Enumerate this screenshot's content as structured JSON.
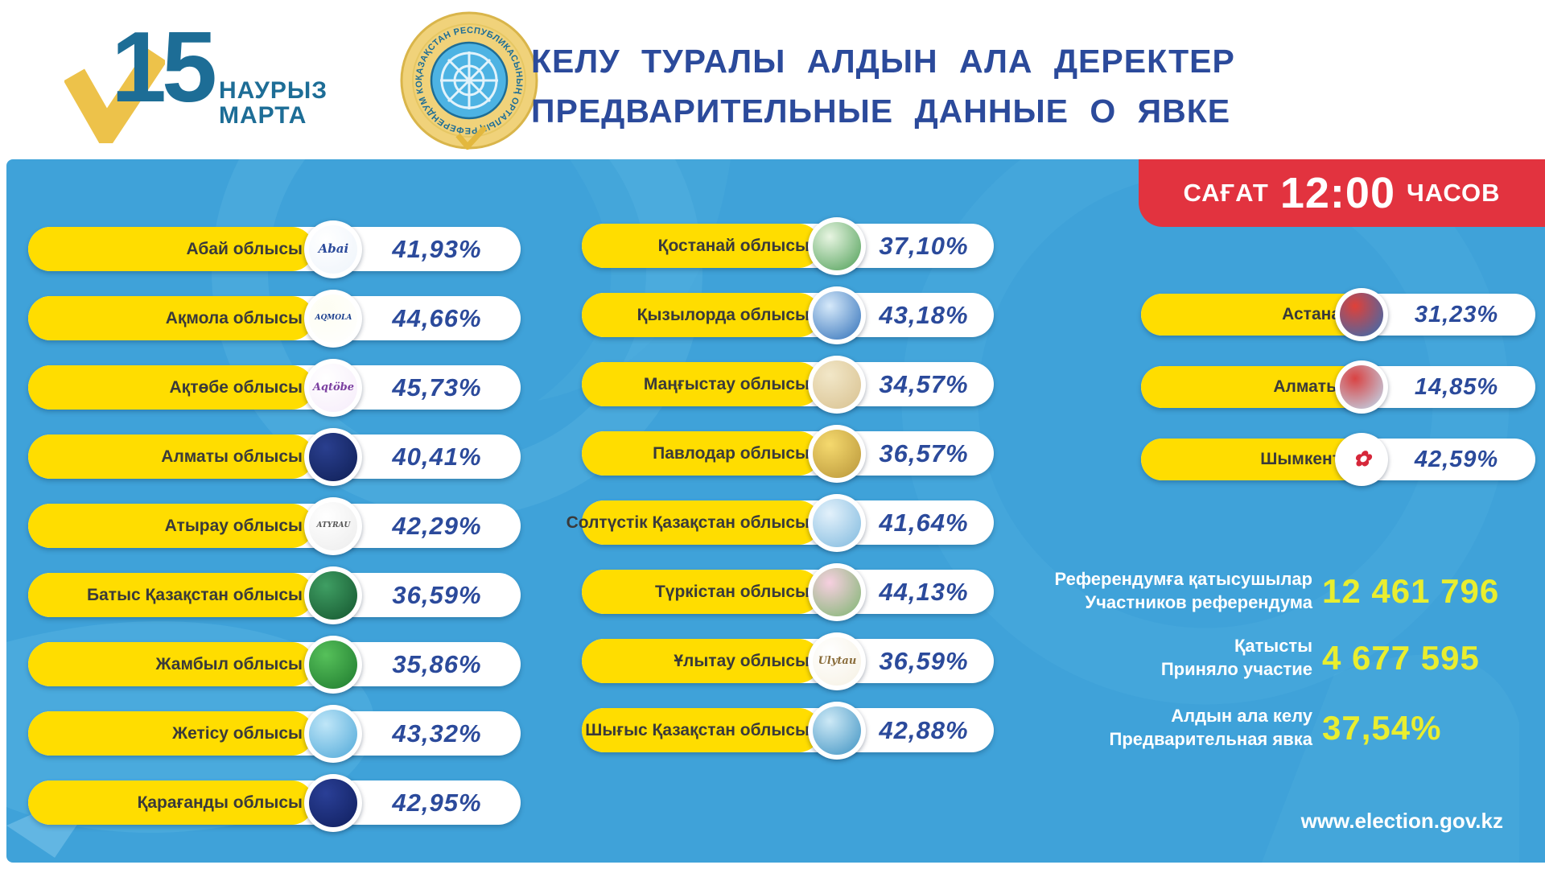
{
  "header": {
    "logo": {
      "day": "15",
      "month_kk": "НАУРЫЗ",
      "month_ru": "МАРТА"
    },
    "seal_text": "ҚАЗАҚСТАН РЕСПУБЛИКАСЫНЫҢ ОРТАЛЫҚ РЕФЕРЕНДУМ КОМИССИЯСЫ",
    "title_line1": "КЕЛУ ТУРАЛЫ АЛДЫН АЛА ДЕРЕКТЕР",
    "title_line2": "ПРЕДВАРИТЕЛЬНЫЕ ДАННЫЕ О ЯВКЕ"
  },
  "time_badge": {
    "prefix": "САҒАТ",
    "time": "12:00",
    "suffix": "ЧАСОВ"
  },
  "columns": {
    "left": [
      {
        "name": "Абай облысы",
        "value": "41,93%",
        "emblem": {
          "c1": "#ffffff",
          "c2": "#eef4fb",
          "label": "Abai",
          "label_color": "#2b4a9b",
          "label_size": 15
        }
      },
      {
        "name": "Ақмола облысы",
        "value": "44,66%",
        "emblem": {
          "c1": "#fdfdf2",
          "c2": "#ffffff",
          "label": "AQMOLA",
          "label_color": "#1b3f8f",
          "label_size": 9
        }
      },
      {
        "name": "Ақтөбе облысы",
        "value": "45,73%",
        "emblem": {
          "c1": "#ffffff",
          "c2": "#f6ecfa",
          "label": "Aqtöbe",
          "label_color": "#7b3fa0",
          "label_size": 13
        }
      },
      {
        "name": "Алматы облысы",
        "value": "40,41%",
        "emblem": {
          "c1": "#2a3f8f",
          "c2": "#0f1f55",
          "label": "",
          "label_color": "#c9a227"
        }
      },
      {
        "name": "Атырау облысы",
        "value": "42,29%",
        "emblem": {
          "c1": "#ffffff",
          "c2": "#ececec",
          "label": "ATYRAU",
          "label_color": "#555555",
          "label_size": 9
        }
      },
      {
        "name": "Батыс Қазақстан облысы",
        "value": "36,59%",
        "emblem": {
          "c1": "#3f9e63",
          "c2": "#14552e",
          "label": ""
        }
      },
      {
        "name": "Жамбыл облысы",
        "value": "35,86%",
        "emblem": {
          "c1": "#56c05a",
          "c2": "#1e7a2e",
          "label": ""
        }
      },
      {
        "name": "Жетісу облысы",
        "value": "43,32%",
        "emblem": {
          "c1": "#bfe6f8",
          "c2": "#4fa8d8",
          "label": ""
        }
      },
      {
        "name": "Қарағанды облысы",
        "value": "42,95%",
        "emblem": {
          "c1": "#2a3f96",
          "c2": "#101f5e",
          "label": ""
        }
      }
    ],
    "middle": [
      {
        "name": "Қостанай облысы",
        "value": "37,10%",
        "emblem": {
          "c1": "#e8f5e2",
          "c2": "#4d9e55",
          "label": ""
        }
      },
      {
        "name": "Қызылорда облысы",
        "value": "43,18%",
        "emblem": {
          "c1": "#d6e9fa",
          "c2": "#2f6fb8",
          "label": ""
        }
      },
      {
        "name": "Маңғыстау облысы",
        "value": "34,57%",
        "emblem": {
          "c1": "#f2e7c8",
          "c2": "#d8c190",
          "label": ""
        }
      },
      {
        "name": "Павлодар облысы",
        "value": "36,57%",
        "emblem": {
          "c1": "#f5d96e",
          "c2": "#b89539",
          "label": ""
        }
      },
      {
        "name": "Солтүстік Қазақстан облысы",
        "value": "41,64%",
        "emblem": {
          "c1": "#e3f1fb",
          "c2": "#7fb9de",
          "label": ""
        }
      },
      {
        "name": "Түркістан облысы",
        "value": "44,13%",
        "emblem": {
          "c1": "#f7cfe0",
          "c2": "#7cb56f",
          "label": ""
        }
      },
      {
        "name": "Ұлытау облысы",
        "value": "36,59%",
        "emblem": {
          "c1": "#ffffff",
          "c2": "#f6f1e3",
          "label": "Ulytau",
          "label_color": "#8a6d3b",
          "label_size": 13
        }
      },
      {
        "name": "Шығыс Қазақстан облысы",
        "value": "42,88%",
        "emblem": {
          "c1": "#cde9f6",
          "c2": "#3e92c2",
          "label": ""
        }
      }
    ],
    "cities": [
      {
        "name": "Астана қ.",
        "value": "31,23%",
        "emblem": {
          "c1": "#e04038",
          "c2": "#2f6fb8",
          "label": ""
        }
      },
      {
        "name": "Алматы қ.",
        "value": "14,85%",
        "emblem": {
          "c1": "#d94343",
          "c2": "#bfe0f5",
          "label": ""
        }
      },
      {
        "name": "Шымкент қ.",
        "value": "42,59%",
        "emblem": {
          "c1": "#ffffff",
          "c2": "#ffffff",
          "label": "✿",
          "label_color": "#d6273a",
          "label_size": 26
        }
      }
    ]
  },
  "stats": [
    {
      "label_kk": "Референдумға қатысушылар",
      "label_ru": "Участников референдума",
      "value": "12 461 796"
    },
    {
      "label_kk": "Қатысты",
      "label_ru": "Приняло участие",
      "value": "4 677 595"
    },
    {
      "label_kk": "Алдын ала келу",
      "label_ru": "Предварительная явка",
      "value": "37,54%"
    }
  ],
  "footer": {
    "url": "www.election.gov.kz"
  },
  "colors": {
    "panel_blue": "#3fa2d9",
    "pill_yellow": "#ffdd00",
    "badge_red": "#e2333f",
    "navy": "#2b4a9b",
    "teal_logo": "#1d6d96",
    "stat_yellow": "#e9ee2f",
    "gold_check": "#edc24a"
  },
  "chart_data": {
    "type": "table",
    "title": "КЕЛУ ТУРАЛЫ АЛДЫН АЛА ДЕРЕКТЕР / ПРЕДВАРИТЕЛЬНЫЕ ДАННЫЕ О ЯВКЕ",
    "subtitle": "САҒАТ 12:00 ЧАСОВ",
    "unit": "%",
    "categories": [
      "Абай облысы",
      "Ақмола облысы",
      "Ақтөбе облысы",
      "Алматы облысы",
      "Атырау облысы",
      "Батыс Қазақстан облысы",
      "Жамбыл облысы",
      "Жетісу облысы",
      "Қарағанды облысы",
      "Қостанай облысы",
      "Қызылорда облысы",
      "Маңғыстау облысы",
      "Павлодар облысы",
      "Солтүстік Қазақстан облысы",
      "Түркістан облысы",
      "Ұлытау облысы",
      "Шығыс Қазақстан облысы",
      "Астана қ.",
      "Алматы қ.",
      "Шымкент қ."
    ],
    "values": [
      41.93,
      44.66,
      45.73,
      40.41,
      42.29,
      36.59,
      35.86,
      43.32,
      42.95,
      37.1,
      43.18,
      34.57,
      36.57,
      41.64,
      44.13,
      36.59,
      42.88,
      31.23,
      14.85,
      42.59
    ],
    "totals": {
      "participants": 12461796,
      "took_part": 4677595,
      "preliminary_turnout_pct": 37.54
    }
  }
}
